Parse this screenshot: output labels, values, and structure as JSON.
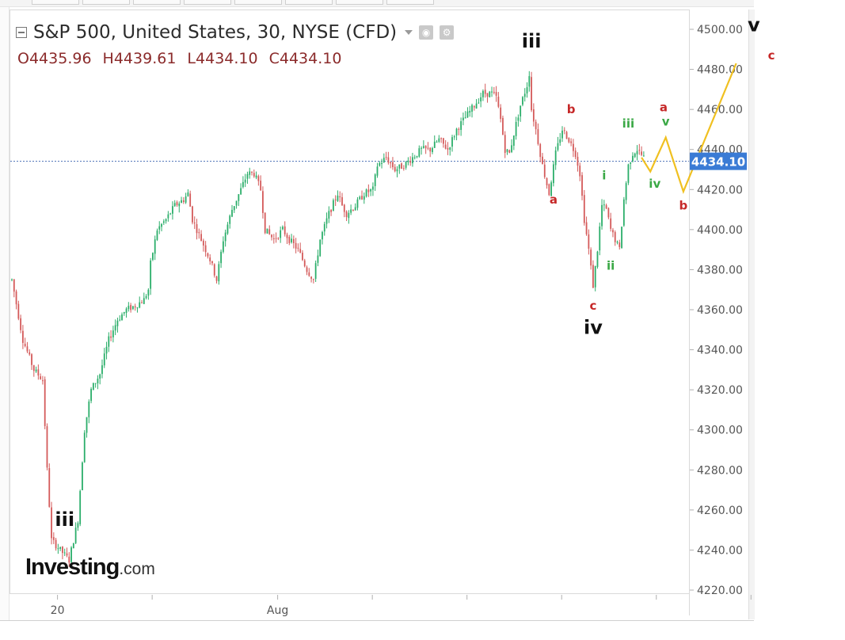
{
  "header": {
    "title": "S&P 500, United States, 30, NYSE (CFD)",
    "ohlc": [
      {
        "k": "O",
        "v": "4435.96"
      },
      {
        "k": "H",
        "v": "4439.61"
      },
      {
        "k": "L",
        "v": "4434.10"
      },
      {
        "k": "C",
        "v": "4434.10"
      }
    ]
  },
  "logo": {
    "main": "Investing",
    "suffix": ".com"
  },
  "colors": {
    "up": "#2bae6a",
    "down": "#d45a5a",
    "wave_red": "#c62828",
    "wave_green": "#3aa845",
    "projection": "#f0c020",
    "price_badge": "#3a7bd5",
    "axis_text": "#555555"
  },
  "chart_data": {
    "type": "candlestick",
    "title": "S&P 500, United States, 30, NYSE (CFD)",
    "x_tick_labels": [
      "20",
      "Aug"
    ],
    "y_ticks": [
      "4220.00",
      "4240.00",
      "4260.00",
      "4280.00",
      "4300.00",
      "4320.00",
      "4340.00",
      "4360.00",
      "4380.00",
      "4400.00",
      "4420.00",
      "4440.00",
      "4460.00",
      "4480.00",
      "4500.00"
    ],
    "ylim": [
      4220,
      4500
    ],
    "last_price": "4434.10",
    "price_path": [
      [
        0,
        4375
      ],
      [
        5,
        4345
      ],
      [
        10,
        4330
      ],
      [
        14,
        4325
      ],
      [
        16,
        4280
      ],
      [
        18,
        4245
      ],
      [
        22,
        4240
      ],
      [
        26,
        4235
      ],
      [
        30,
        4255
      ],
      [
        33,
        4300
      ],
      [
        36,
        4320
      ],
      [
        40,
        4328
      ],
      [
        44,
        4345
      ],
      [
        48,
        4355
      ],
      [
        52,
        4360
      ],
      [
        56,
        4362
      ],
      [
        60,
        4365
      ],
      [
        62,
        4370
      ],
      [
        63,
        4383
      ],
      [
        66,
        4400
      ],
      [
        70,
        4405
      ],
      [
        74,
        4412
      ],
      [
        78,
        4415
      ],
      [
        80,
        4418
      ],
      [
        82,
        4405
      ],
      [
        86,
        4395
      ],
      [
        90,
        4385
      ],
      [
        93,
        4375
      ],
      [
        96,
        4395
      ],
      [
        100,
        4410
      ],
      [
        104,
        4420
      ],
      [
        107,
        4428
      ],
      [
        110,
        4428
      ],
      [
        113,
        4420
      ],
      [
        115,
        4400
      ],
      [
        119,
        4395
      ],
      [
        123,
        4400
      ],
      [
        126,
        4395
      ],
      [
        130,
        4390
      ],
      [
        134,
        4380
      ],
      [
        137,
        4375
      ],
      [
        140,
        4395
      ],
      [
        144,
        4408
      ],
      [
        148,
        4418
      ],
      [
        150,
        4412
      ],
      [
        152,
        4408
      ],
      [
        156,
        4412
      ],
      [
        160,
        4418
      ],
      [
        164,
        4420
      ],
      [
        166,
        4432
      ],
      [
        170,
        4436
      ],
      [
        174,
        4430
      ],
      [
        178,
        4432
      ],
      [
        182,
        4436
      ],
      [
        186,
        4440
      ],
      [
        190,
        4440
      ],
      [
        194,
        4445
      ],
      [
        198,
        4440
      ],
      [
        202,
        4450
      ],
      [
        206,
        4456
      ],
      [
        210,
        4462
      ],
      [
        214,
        4468
      ],
      [
        218,
        4468
      ],
      [
        220,
        4466
      ],
      [
        222,
        4455
      ],
      [
        224,
        4440
      ],
      [
        226,
        4438
      ],
      [
        228,
        4448
      ],
      [
        231,
        4462
      ],
      [
        234,
        4472
      ],
      [
        235,
        4478
      ],
      [
        236,
        4460
      ],
      [
        238,
        4450
      ],
      [
        241,
        4432
      ],
      [
        244,
        4418
      ],
      [
        247,
        4438
      ],
      [
        250,
        4450
      ],
      [
        253,
        4445
      ],
      [
        256,
        4438
      ],
      [
        258,
        4428
      ],
      [
        260,
        4405
      ],
      [
        262,
        4390
      ],
      [
        264,
        4372
      ],
      [
        266,
        4390
      ],
      [
        268,
        4412
      ],
      [
        270,
        4410
      ],
      [
        272,
        4400
      ],
      [
        274,
        4395
      ],
      [
        276,
        4390
      ],
      [
        278,
        4415
      ],
      [
        280,
        4432
      ],
      [
        282,
        4438
      ],
      [
        284,
        4440
      ],
      [
        287,
        4436
      ]
    ],
    "series": [
      {
        "points": [
          {
            "x": 286,
            "y": 4436
          },
          {
            "x": 290,
            "y": 4429
          },
          {
            "x": 297,
            "y": 4446
          },
          {
            "x": 305,
            "y": 4419
          },
          {
            "x": 329,
            "y": 4483
          }
        ]
      }
    ],
    "wave_labels": [
      {
        "text": "iii",
        "x": 24,
        "y": 4252,
        "color": "black",
        "size": "large"
      },
      {
        "text": "iii",
        "x": 236,
        "y": 4491,
        "color": "black",
        "size": "large"
      },
      {
        "text": "iv",
        "x": 264,
        "y": 4348,
        "color": "black",
        "size": "large"
      },
      {
        "text": "v",
        "x": 337,
        "y": 4499,
        "color": "black",
        "size": "large"
      },
      {
        "text": "a",
        "x": 246,
        "y": 4413,
        "color": "red",
        "size": "small"
      },
      {
        "text": "b",
        "x": 254,
        "y": 4458,
        "color": "red",
        "size": "small"
      },
      {
        "text": "c",
        "x": 264,
        "y": 4360,
        "color": "red",
        "size": "small"
      },
      {
        "text": "i",
        "x": 269,
        "y": 4425,
        "color": "green",
        "size": "small"
      },
      {
        "text": "ii",
        "x": 272,
        "y": 4380,
        "color": "green",
        "size": "small"
      },
      {
        "text": "iii",
        "x": 280,
        "y": 4451,
        "color": "green",
        "size": "small"
      },
      {
        "text": "iv",
        "x": 292,
        "y": 4421,
        "color": "green",
        "size": "small"
      },
      {
        "text": "v",
        "x": 297,
        "y": 4452,
        "color": "green",
        "size": "small"
      },
      {
        "text": "a",
        "x": 296,
        "y": 4459,
        "color": "red",
        "size": "small"
      },
      {
        "text": "b",
        "x": 305,
        "y": 4410,
        "color": "red",
        "size": "small"
      },
      {
        "text": "c",
        "x": 345,
        "y": 4485,
        "color": "red",
        "size": "small"
      }
    ]
  }
}
